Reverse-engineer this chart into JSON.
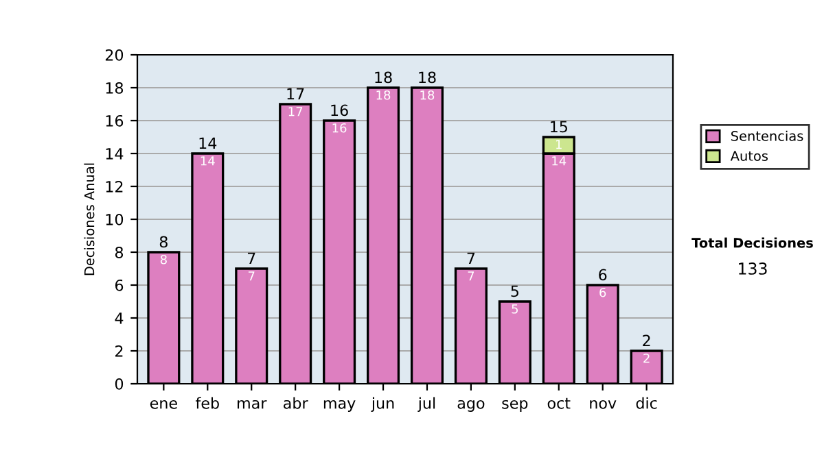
{
  "chart_data": {
    "type": "bar",
    "stacked": true,
    "ylabel": "Decisiones Anual",
    "categories": [
      "ene",
      "feb",
      "mar",
      "abr",
      "may",
      "jun",
      "jul",
      "ago",
      "sep",
      "oct",
      "nov",
      "dic"
    ],
    "series": [
      {
        "name": "Sentencias",
        "color": "#dd7fc0",
        "values": [
          8,
          14,
          7,
          17,
          16,
          18,
          18,
          7,
          5,
          14,
          6,
          2
        ],
        "value_labels": [
          "8",
          "14",
          "7",
          "17",
          "16",
          "18",
          "18",
          "7",
          "5",
          "14",
          "6",
          "2"
        ]
      },
      {
        "name": "Autos",
        "color": "#cce68f",
        "values": [
          null,
          null,
          null,
          null,
          null,
          null,
          null,
          null,
          null,
          1,
          null,
          null
        ],
        "value_labels": [
          null,
          null,
          null,
          null,
          null,
          null,
          null,
          null,
          null,
          "1",
          null,
          null
        ]
      }
    ],
    "totals": [
      "8",
      "14",
      "7",
      "17",
      "16",
      "18",
      "18",
      "7",
      "5",
      "15",
      "6",
      "2"
    ],
    "ylim": [
      0,
      20
    ],
    "yticks": [
      0,
      2,
      4,
      6,
      8,
      10,
      12,
      14,
      16,
      18,
      20
    ],
    "grid": "y",
    "legend": "right",
    "annotations": [
      "Total Decisiones",
      "133"
    ]
  }
}
